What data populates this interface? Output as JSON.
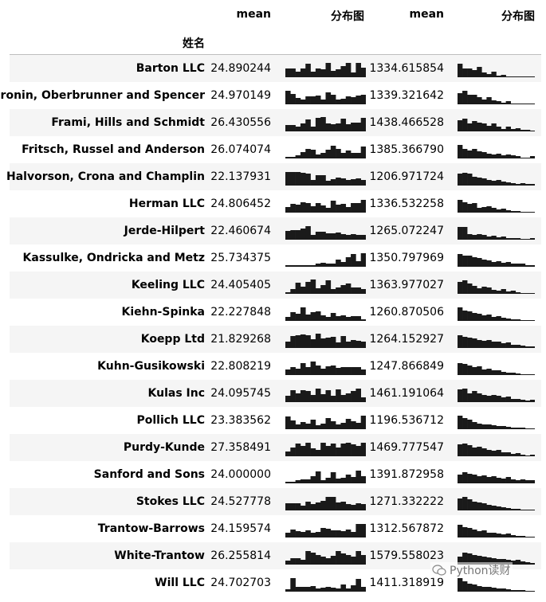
{
  "header": {
    "mean_1": "mean",
    "dist_1": "分布图",
    "mean_2": "mean",
    "dist_2": "分布图",
    "index_name": "姓名"
  },
  "rows": [
    {
      "name": "Barton LLC",
      "mean1": "24.890244",
      "mean2": "1334.615854",
      "spark1": [
        0.55,
        0.55,
        0.35,
        0.55,
        0.85,
        0.35,
        0.55,
        0.5,
        0.9,
        0.4,
        0.5,
        0.7,
        0.9,
        0.3,
        0.9,
        0.6
      ],
      "spark2": [
        0.85,
        0.55,
        0.55,
        0.45,
        0.65,
        0.3,
        0.2,
        0.35,
        0.1,
        0.15,
        0,
        0,
        0,
        0,
        0,
        0
      ]
    },
    {
      "name": "Cronin, Oberbrunner and Spencer",
      "mean1": "24.970149",
      "mean2": "1339.321642",
      "spark1": [
        0.85,
        0.65,
        0.4,
        0.3,
        0.5,
        0.5,
        0.55,
        0.3,
        0.75,
        0.6,
        0.3,
        0.35,
        0.5,
        0.45,
        0.55,
        0.6
      ],
      "spark2": [
        0.7,
        0.85,
        0.6,
        0.6,
        0.45,
        0.3,
        0.45,
        0.25,
        0.2,
        0.1,
        0.2,
        0,
        0,
        0,
        0,
        0
      ]
    },
    {
      "name": "Frami, Hills and Schmidt",
      "mean1": "26.430556",
      "mean2": "1438.466528",
      "spark1": [
        0.4,
        0.4,
        0.3,
        0.5,
        0.75,
        0.3,
        0.85,
        0.9,
        0.5,
        0.45,
        0.5,
        0.8,
        0.45,
        0.55,
        0.55,
        0.85
      ],
      "spark2": [
        0.7,
        0.8,
        0.5,
        0.65,
        0.55,
        0.5,
        0.35,
        0.5,
        0.3,
        0.15,
        0.3,
        0.15,
        0.2,
        0.1,
        0.1,
        0
      ]
    },
    {
      "name": "Fritsch, Russel and Anderson",
      "mean1": "26.074074",
      "mean2": "1385.366790",
      "spark1": [
        0.1,
        0.1,
        0.2,
        0.4,
        0.6,
        0.55,
        0.25,
        0.35,
        0.55,
        0.8,
        0.6,
        0.35,
        0.5,
        0.35,
        0.35,
        0.75
      ],
      "spark2": [
        0.85,
        0.6,
        0.5,
        0.6,
        0.45,
        0.4,
        0.3,
        0.25,
        0.3,
        0.2,
        0.25,
        0.2,
        0.15,
        0,
        0,
        0.15
      ]
    },
    {
      "name": "Halvorson, Crona and Champlin",
      "mean1": "22.137931",
      "mean2": "1206.971724",
      "spark1": [
        0.85,
        0.85,
        0.85,
        0.8,
        0.75,
        0.35,
        0.65,
        0.65,
        0.3,
        0.4,
        0.5,
        0.45,
        0.35,
        0.4,
        0.45,
        0.35
      ],
      "spark2": [
        0.75,
        0.8,
        0.75,
        0.55,
        0.5,
        0.45,
        0.35,
        0.3,
        0.35,
        0.25,
        0.2,
        0.15,
        0.1,
        0.15,
        0.1,
        0.1
      ]
    },
    {
      "name": "Herman LLC",
      "mean1": "24.806452",
      "mean2": "1336.532258",
      "spark1": [
        0.35,
        0.55,
        0.5,
        0.65,
        0.6,
        0.4,
        0.6,
        0.45,
        0.3,
        0.75,
        0.5,
        0.55,
        0.35,
        0.6,
        0.6,
        0.8
      ],
      "spark2": [
        0.8,
        0.65,
        0.55,
        0.6,
        0.3,
        0.35,
        0.4,
        0.3,
        0.2,
        0.25,
        0.15,
        0.1,
        0.1,
        0,
        0,
        0
      ]
    },
    {
      "name": "Jerde-Hilpert",
      "mean1": "22.460674",
      "mean2": "1265.072247",
      "spark1": [
        0.55,
        0.6,
        0.6,
        0.7,
        0.85,
        0.3,
        0.5,
        0.5,
        0.4,
        0.4,
        0.45,
        0.35,
        0.3,
        0.35,
        0.3,
        0.3
      ],
      "spark2": [
        0.8,
        0.8,
        0.35,
        0.3,
        0.35,
        0.3,
        0.2,
        0.25,
        0.15,
        0.2,
        0.1,
        0.1,
        0.1,
        0.05,
        0.05,
        0.1
      ]
    },
    {
      "name": "Kassulke, Ondricka and Metz",
      "mean1": "25.734375",
      "mean2": "1350.797969",
      "spark1": [
        0.1,
        0.1,
        0.1,
        0.1,
        0.1,
        0.1,
        0.2,
        0.25,
        0.2,
        0.2,
        0.45,
        0.3,
        0.6,
        0.8,
        0.35,
        0.85
      ],
      "spark2": [
        0.8,
        0.7,
        0.7,
        0.6,
        0.55,
        0.45,
        0.4,
        0.3,
        0.35,
        0.25,
        0.3,
        0.2,
        0.2,
        0.2,
        0.1,
        0.1
      ]
    },
    {
      "name": "Keeling LLC",
      "mean1": "24.405405",
      "mean2": "1363.977027",
      "spark1": [
        0.1,
        0.3,
        0.7,
        0.45,
        0.75,
        0.9,
        0.35,
        0.55,
        0.85,
        0.3,
        0.4,
        0.55,
        0.65,
        0.4,
        0.4,
        0.3
      ],
      "spark2": [
        0.75,
        0.85,
        0.65,
        0.5,
        0.35,
        0.45,
        0.4,
        0.25,
        0.2,
        0.3,
        0.15,
        0.2,
        0.1,
        0,
        0,
        0
      ]
    },
    {
      "name": "Kiehn-Spinka",
      "mean1": "22.227848",
      "mean2": "1260.870506",
      "spark1": [
        0.25,
        0.55,
        0.45,
        0.85,
        0.4,
        0.55,
        0.6,
        0.35,
        0.25,
        0.5,
        0.3,
        0.35,
        0.25,
        0.3,
        0.3,
        0.1
      ],
      "spark2": [
        0.85,
        0.65,
        0.6,
        0.5,
        0.45,
        0.35,
        0.4,
        0.25,
        0.3,
        0.2,
        0.15,
        0.1,
        0.1,
        0.05,
        0,
        0
      ]
    },
    {
      "name": "Koepp Ltd",
      "mean1": "21.829268",
      "mean2": "1264.152927",
      "spark1": [
        0.4,
        0.75,
        0.8,
        0.85,
        0.8,
        0.55,
        0.9,
        0.6,
        0.65,
        0.7,
        0.35,
        0.75,
        0.4,
        0.5,
        0.45,
        0.4
      ],
      "spark2": [
        0.8,
        0.7,
        0.65,
        0.6,
        0.5,
        0.45,
        0.5,
        0.4,
        0.4,
        0.3,
        0.35,
        0.2,
        0.2,
        0.15,
        0.1,
        0.1
      ]
    },
    {
      "name": "Kuhn-Gusikowski",
      "mean1": "22.808219",
      "mean2": "1247.866849",
      "spark1": [
        0.35,
        0.5,
        0.4,
        0.75,
        0.5,
        0.85,
        0.6,
        0.4,
        0.55,
        0.6,
        0.45,
        0.5,
        0.5,
        0.5,
        0.5,
        0.35
      ],
      "spark2": [
        0.75,
        0.7,
        0.6,
        0.5,
        0.55,
        0.35,
        0.4,
        0.3,
        0.3,
        0.2,
        0.15,
        0.15,
        0.1,
        0.05,
        0,
        0
      ]
    },
    {
      "name": "Kulas Inc",
      "mean1": "24.095745",
      "mean2": "1461.191064",
      "spark1": [
        0.4,
        0.75,
        0.55,
        0.75,
        0.7,
        0.45,
        0.85,
        0.5,
        0.75,
        0.4,
        0.8,
        0.45,
        0.55,
        0.7,
        0.85,
        0.3
      ],
      "spark2": [
        0.8,
        0.85,
        0.55,
        0.7,
        0.55,
        0.45,
        0.4,
        0.45,
        0.4,
        0.3,
        0.35,
        0.2,
        0.2,
        0.15,
        0.1,
        0.15
      ]
    },
    {
      "name": "Pollich LLC",
      "mean1": "23.383562",
      "mean2": "1196.536712",
      "spark1": [
        0.8,
        0.55,
        0.3,
        0.45,
        0.35,
        0.6,
        0.25,
        0.35,
        0.7,
        0.5,
        0.3,
        0.4,
        0.65,
        0.5,
        0.4,
        0.85
      ],
      "spark2": [
        0.85,
        0.7,
        0.6,
        0.45,
        0.35,
        0.3,
        0.3,
        0.25,
        0.2,
        0.2,
        0.15,
        0.1,
        0.1,
        0.1,
        0.05,
        0.05
      ]
    },
    {
      "name": "Purdy-Kunde",
      "mean1": "27.358491",
      "mean2": "1469.777547",
      "spark1": [
        0.3,
        0.55,
        0.8,
        0.65,
        0.85,
        0.5,
        0.4,
        0.85,
        0.65,
        0.8,
        0.55,
        0.8,
        0.85,
        0.75,
        0.65,
        0.85
      ],
      "spark2": [
        0.75,
        0.8,
        0.7,
        0.55,
        0.6,
        0.5,
        0.4,
        0.35,
        0.4,
        0.25,
        0.25,
        0.15,
        0.2,
        0.1,
        0.05,
        0.1
      ]
    },
    {
      "name": "Sanford and Sons",
      "mean1": "24.000000",
      "mean2": "1391.872958",
      "spark1": [
        0.1,
        0.1,
        0.2,
        0.25,
        0.25,
        0.45,
        0.75,
        0.2,
        0.35,
        0.7,
        0.3,
        0.35,
        0.55,
        0.4,
        0.8,
        0.45
      ],
      "spark2": [
        0.55,
        0.7,
        0.6,
        0.55,
        0.45,
        0.5,
        0.4,
        0.45,
        0.35,
        0.3,
        0.4,
        0.25,
        0.2,
        0.25,
        0.2,
        0.2
      ]
    },
    {
      "name": "Stokes LLC",
      "mean1": "24.527778",
      "mean2": "1271.332222",
      "spark1": [
        0.45,
        0.45,
        0.45,
        0.3,
        0.55,
        0.4,
        0.5,
        0.6,
        0.85,
        0.85,
        0.5,
        0.55,
        0.4,
        0.35,
        0.45,
        0.4
      ],
      "spark2": [
        0.75,
        0.85,
        0.7,
        0.55,
        0.5,
        0.45,
        0.35,
        0.3,
        0.25,
        0.2,
        0.15,
        0.1,
        0.1,
        0.05,
        0,
        0
      ]
    },
    {
      "name": "Trantow-Barrows",
      "mean1": "24.159574",
      "mean2": "1312.567872",
      "spark1": [
        0.3,
        0.5,
        0.4,
        0.35,
        0.45,
        0.3,
        0.35,
        0.6,
        0.55,
        0.45,
        0.45,
        0.4,
        0.5,
        0.35,
        0.85,
        0.85
      ],
      "spark2": [
        0.8,
        0.65,
        0.6,
        0.5,
        0.4,
        0.45,
        0.3,
        0.3,
        0.25,
        0.2,
        0.25,
        0.15,
        0.1,
        0.1,
        0.05,
        0
      ]
    },
    {
      "name": "White-Trantow",
      "mean1": "26.255814",
      "mean2": "1579.558023",
      "spark1": [
        0.25,
        0.4,
        0.4,
        0.3,
        0.85,
        0.75,
        0.6,
        0.5,
        0.4,
        0.55,
        0.85,
        0.7,
        0.6,
        0.5,
        0.85,
        0.6
      ],
      "spark2": [
        0.5,
        0.75,
        0.7,
        0.6,
        0.55,
        0.5,
        0.45,
        0.4,
        0.35,
        0.35,
        0.3,
        0.25,
        0.3,
        0.2,
        0.15,
        0.1
      ]
    },
    {
      "name": "Will LLC",
      "mean1": "24.702703",
      "mean2": "1411.318919",
      "spark1": [
        0.15,
        0.85,
        0.3,
        0.3,
        0.3,
        0.35,
        0.2,
        0.25,
        0.3,
        0.25,
        0.2,
        0.45,
        0.2,
        0.4,
        0.8,
        0.3
      ],
      "spark2": [
        0.85,
        0.65,
        0.5,
        0.45,
        0.35,
        0.3,
        0.3,
        0.25,
        0.2,
        0.2,
        0.15,
        0.1,
        0.1,
        0.1,
        0.05,
        0
      ]
    }
  ],
  "watermark": {
    "text": "Python读财",
    "icon": "wechat-icon"
  }
}
